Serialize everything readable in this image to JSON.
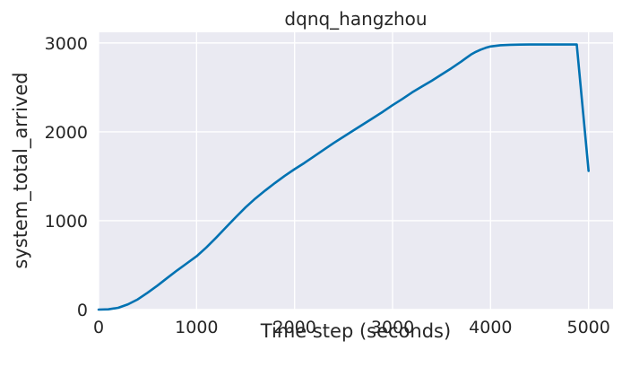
{
  "chart_data": {
    "type": "line",
    "title": "dqnq_hangzhou",
    "xlabel": "Time step (seconds)",
    "ylabel": "system_total_arrived",
    "xlim": [
      0,
      5250
    ],
    "ylim": [
      0,
      3120
    ],
    "xticks": [
      0,
      1000,
      2000,
      3000,
      4000,
      5000
    ],
    "xtick_labels": [
      "0",
      "1000",
      "2000",
      "3000",
      "4000",
      "5000"
    ],
    "yticks": [
      0,
      1000,
      2000,
      3000
    ],
    "ytick_labels": [
      "0",
      "1000",
      "2000",
      "3000"
    ],
    "grid": true,
    "colors": {
      "background": "#eaeaf2",
      "grid": "#ffffff",
      "line": "#0072b2"
    },
    "series": [
      {
        "x": [
          0,
          100,
          200,
          300,
          400,
          500,
          600,
          700,
          800,
          900,
          1000,
          1100,
          1200,
          1300,
          1400,
          1500,
          1600,
          1700,
          1800,
          1900,
          2000,
          2100,
          2200,
          2300,
          2400,
          2500,
          2600,
          2700,
          2800,
          2900,
          3000,
          3100,
          3200,
          3300,
          3400,
          3500,
          3600,
          3700,
          3750,
          3800,
          3850,
          3900,
          3950,
          4000,
          4100,
          4200,
          4300,
          4400,
          4500,
          4600,
          4700,
          4800,
          4880,
          5000
        ],
        "y": [
          0,
          3,
          20,
          60,
          115,
          190,
          270,
          355,
          440,
          520,
          600,
          700,
          810,
          925,
          1040,
          1150,
          1250,
          1340,
          1425,
          1505,
          1580,
          1650,
          1725,
          1800,
          1875,
          1945,
          2015,
          2085,
          2155,
          2225,
          2300,
          2370,
          2445,
          2510,
          2575,
          2645,
          2715,
          2790,
          2830,
          2870,
          2900,
          2925,
          2945,
          2960,
          2975,
          2980,
          2982,
          2983,
          2983,
          2983,
          2983,
          2983,
          2983,
          1560
        ]
      }
    ]
  }
}
